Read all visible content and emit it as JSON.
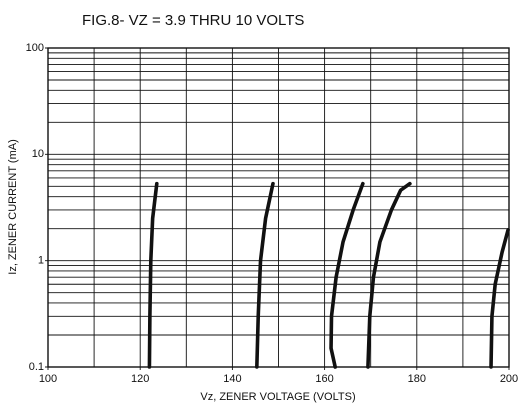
{
  "chart_data": {
    "type": "line",
    "title": "FIG.8- VZ = 3.9 THRU 10 VOLTS",
    "x_label": "Vz, ZENER VOLTAGE (VOLTS)",
    "y_label": "Iz, ZENER CURRENT (mA)",
    "xlim": [
      100,
      200
    ],
    "ylim": [
      0.1,
      100
    ],
    "y_log": true,
    "grid": true,
    "xticks": [
      100,
      120,
      140,
      160,
      180,
      200
    ],
    "xminorticks": [
      110,
      130,
      150,
      170,
      190
    ],
    "yticks": [
      0.1,
      1,
      10,
      100
    ],
    "yminorticks": [
      0.2,
      0.3,
      0.4,
      0.5,
      0.6,
      0.7,
      0.8,
      0.9,
      2,
      3,
      4,
      5,
      6,
      7,
      8,
      9,
      20,
      30,
      40,
      50,
      60,
      70,
      80,
      90
    ],
    "color": "#111111",
    "series": [
      {
        "x": [
          122.0,
          122.1,
          122.3,
          122.7,
          123.6
        ],
        "values": [
          0.1,
          0.3,
          1,
          2.5,
          5.3
        ]
      },
      {
        "x": [
          145.3,
          145.6,
          146.1,
          147.2,
          148.8
        ],
        "values": [
          0.1,
          0.3,
          1,
          2.5,
          5.3
        ]
      },
      {
        "x": [
          162.3,
          161.4,
          161.5,
          162.5,
          164.0,
          166.2,
          168.3
        ],
        "values": [
          0.1,
          0.15,
          0.3,
          0.7,
          1.5,
          3,
          5.3
        ]
      },
      {
        "x": [
          169.4,
          169.8,
          170.6,
          172.0,
          174.5,
          176.5,
          178.5
        ],
        "values": [
          0.1,
          0.3,
          0.7,
          1.5,
          3,
          4.6,
          5.3
        ]
      },
      {
        "x": [
          196.1,
          196.3,
          197.0,
          198.5,
          199.8
        ],
        "values": [
          0.1,
          0.3,
          0.6,
          1.2,
          1.95
        ]
      }
    ]
  }
}
